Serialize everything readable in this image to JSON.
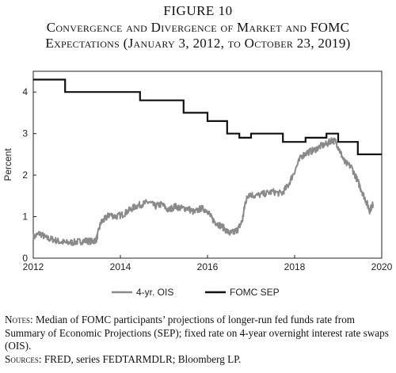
{
  "figure": {
    "number": "FIGURE 10",
    "title_line1": "Convergence and Divergence of Market and FOMC",
    "title_line2": "Expectations (January 3, 2012, to October 23, 2019)"
  },
  "notes": {
    "notes_label": "Notes:",
    "notes_text": "Median of FOMC participants’ projections of longer-run fed funds rate from Summary of Economic Projections (SEP); fixed rate on 4-year overnight interest rate swaps (OIS).",
    "sources_label": "Sources:",
    "sources_text": "FRED, series FEDTARMDLR; Bloomberg LP."
  },
  "chart_data": {
    "type": "line",
    "title": "",
    "xlabel": "",
    "ylabel": "Percent",
    "xlim": [
      2012,
      2020
    ],
    "ylim": [
      0,
      4.5
    ],
    "x_ticks": [
      2012,
      2014,
      2016,
      2018,
      2020
    ],
    "y_ticks": [
      0,
      1,
      2,
      3,
      4
    ],
    "grid": false,
    "legend_position": "bottom",
    "series": [
      {
        "name": "4-yr. OIS",
        "color": "#8a8a8a",
        "style": "noisy line",
        "x": [
          2012.0,
          2012.15,
          2012.3,
          2012.45,
          2012.6,
          2012.75,
          2012.9,
          2013.05,
          2013.2,
          2013.35,
          2013.45,
          2013.55,
          2013.65,
          2013.75,
          2013.9,
          2014.05,
          2014.2,
          2014.35,
          2014.5,
          2014.65,
          2014.8,
          2014.95,
          2015.1,
          2015.25,
          2015.4,
          2015.55,
          2015.7,
          2015.85,
          2016.0,
          2016.1,
          2016.2,
          2016.35,
          2016.5,
          2016.6,
          2016.7,
          2016.8,
          2016.87,
          2016.95,
          2017.1,
          2017.3,
          2017.5,
          2017.7,
          2017.85,
          2018.0,
          2018.15,
          2018.3,
          2018.45,
          2018.6,
          2018.75,
          2018.85,
          2018.95,
          2019.05,
          2019.15,
          2019.3,
          2019.45,
          2019.55,
          2019.65,
          2019.72,
          2019.8
        ],
        "y": [
          0.5,
          0.6,
          0.48,
          0.45,
          0.4,
          0.37,
          0.38,
          0.4,
          0.42,
          0.4,
          0.45,
          0.85,
          0.95,
          1.05,
          1.0,
          1.05,
          1.15,
          1.25,
          1.3,
          1.35,
          1.25,
          1.3,
          1.15,
          1.25,
          1.2,
          1.2,
          1.1,
          1.2,
          1.15,
          0.95,
          0.85,
          0.75,
          0.6,
          0.62,
          0.7,
          0.9,
          1.35,
          1.55,
          1.5,
          1.55,
          1.6,
          1.55,
          1.75,
          2.1,
          2.45,
          2.55,
          2.6,
          2.7,
          2.75,
          2.85,
          2.8,
          2.55,
          2.3,
          2.2,
          1.85,
          1.6,
          1.35,
          1.15,
          1.3
        ]
      },
      {
        "name": "FOMC SEP",
        "color": "#111111",
        "style": "step",
        "x": [
          2012.0,
          2012.73,
          2014.45,
          2015.45,
          2016.0,
          2016.45,
          2016.73,
          2017.0,
          2017.73,
          2018.25,
          2018.73,
          2019.0,
          2019.45,
          2020.0
        ],
        "y": [
          4.3,
          4.0,
          3.8,
          3.5,
          3.3,
          3.0,
          2.9,
          3.0,
          2.8,
          2.9,
          3.0,
          2.8,
          2.5,
          2.5
        ]
      }
    ]
  }
}
